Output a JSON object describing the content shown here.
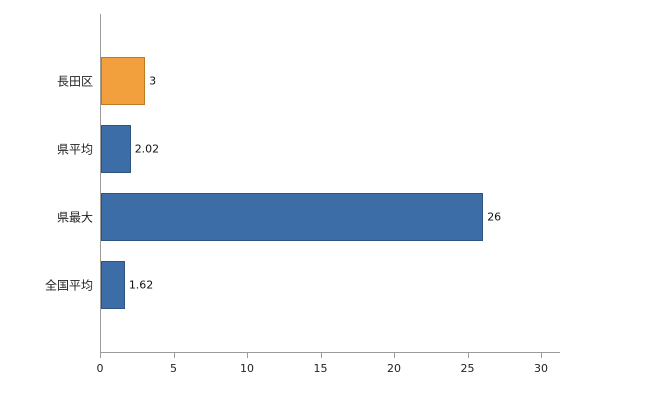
{
  "chart_data": {
    "type": "bar",
    "orientation": "horizontal",
    "title": "",
    "categories": [
      "長田区",
      "県平均",
      "県最大",
      "全国平均"
    ],
    "values": [
      3,
      2.02,
      26,
      1.62
    ],
    "value_labels": [
      "3",
      "2.02",
      "26",
      "1.62"
    ],
    "bar_colors": [
      "#f2a03d",
      "#3c6da6",
      "#3c6da6",
      "#3c6da6"
    ],
    "bar_border_colors": [
      "#bf7a24",
      "#2d5480",
      "#2d5480",
      "#2d5480"
    ],
    "x_ticks": [
      "0",
      "5",
      "10",
      "15",
      "20",
      "25",
      "30"
    ],
    "x_tick_values": [
      0,
      5,
      10,
      15,
      20,
      25,
      30
    ],
    "xlim": [
      0,
      30
    ],
    "grid": false,
    "legend": false,
    "axis_color": "#9b9b9b",
    "background_color": "#ffffff"
  }
}
